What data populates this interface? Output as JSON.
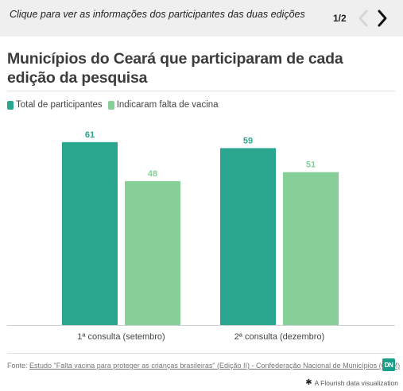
{
  "header": {
    "prompt": "Clique para ver as informações dos participantes das duas edições",
    "pager": "1/2"
  },
  "title": "Municípios do Ceará que participaram de cada edição da pesquisa",
  "legend": [
    {
      "label": "Total de participantes",
      "color": "#2aa58e"
    },
    {
      "label": "Indicaram falta de vacina",
      "color": "#86cf98"
    }
  ],
  "chart_data": {
    "type": "bar",
    "categories": [
      "1ª consulta (setembro)",
      "2ª consulta (dezembro)"
    ],
    "series": [
      {
        "name": "Total de participantes",
        "values": [
          61,
          59
        ],
        "color": "#2aa58e"
      },
      {
        "name": "Indicaram falta de vacina",
        "values": [
          48,
          51
        ],
        "color": "#86cf98"
      }
    ],
    "ylim": [
      0,
      66
    ],
    "xlabel": "",
    "ylabel": "",
    "grid": false,
    "legend_position": "top-left",
    "data_labels": true
  },
  "footer": {
    "source_prefix": "Fonte:",
    "source_link": "Estudo \"Falta vacina para proteger as crianças brasileiras\" (Edição II) - Confederação Nacional de Municípios (CNM)",
    "logo_text": "DN",
    "credit": "A Flourish data visualization"
  }
}
